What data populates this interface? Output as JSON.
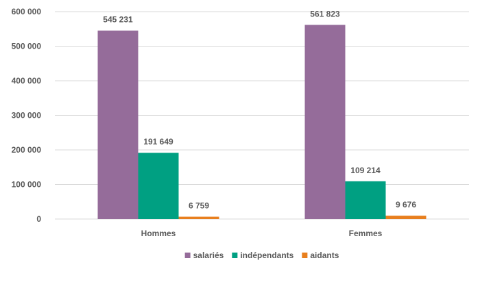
{
  "chart_data": {
    "type": "bar",
    "title": "",
    "xlabel": "",
    "ylabel": "",
    "categories": [
      "Hommes",
      "Femmes"
    ],
    "series": [
      {
        "name": "salariés",
        "color": "#956c9a",
        "values": [
          545231,
          561823
        ],
        "labels": [
          "545 231",
          "561 823"
        ]
      },
      {
        "name": "indépendants",
        "color": "#00a082",
        "values": [
          191649,
          109214
        ],
        "labels": [
          "191 649",
          "109 214"
        ]
      },
      {
        "name": "aidants",
        "color": "#e87f1e",
        "values": [
          6759,
          9676
        ],
        "labels": [
          "6 759",
          "9 676"
        ]
      }
    ],
    "ylim": [
      0,
      600000
    ],
    "y_ticks": [
      0,
      100000,
      200000,
      300000,
      400000,
      500000,
      600000
    ],
    "y_tick_labels": [
      "0",
      "100 000",
      "200 000",
      "300 000",
      "400 000",
      "500 000",
      "600 000"
    ],
    "grid": true,
    "legend_position": "bottom"
  }
}
